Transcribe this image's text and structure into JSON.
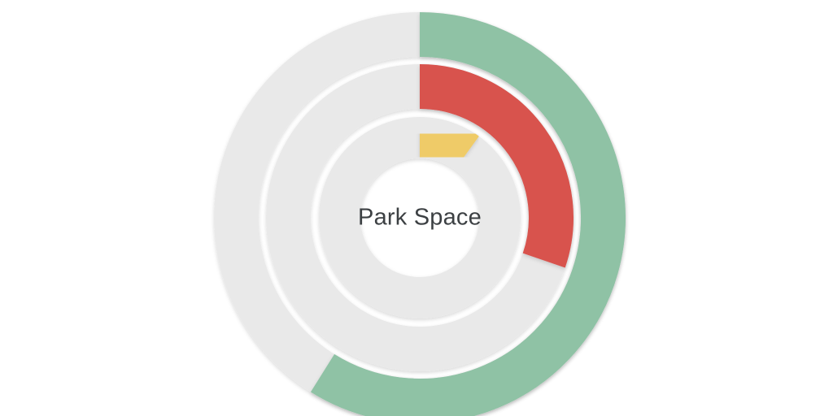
{
  "page": {
    "background_color": "#FFFFFF"
  },
  "chart_data": {
    "type": "pie",
    "subtype": "concentric-donut-gauge-rings",
    "title": "Park Space",
    "title_color": "#3C4043",
    "start_angle_deg": 0,
    "direction": "clockwise",
    "legend": "none",
    "rings": [
      {
        "name": "outer-ring",
        "color": "#8FC2A5",
        "track_color": "#E9E9E9",
        "value_pct": 59,
        "sweep_deg": 212
      },
      {
        "name": "middle-ring",
        "color": "#D8524E",
        "track_color": "#E9E9E9",
        "value_pct": 30,
        "sweep_deg": 109
      },
      {
        "name": "inner-ring",
        "color": "#EFCB67",
        "track_color": "#E9E9E9",
        "value_pct": 10,
        "sweep_deg": 36
      }
    ]
  }
}
